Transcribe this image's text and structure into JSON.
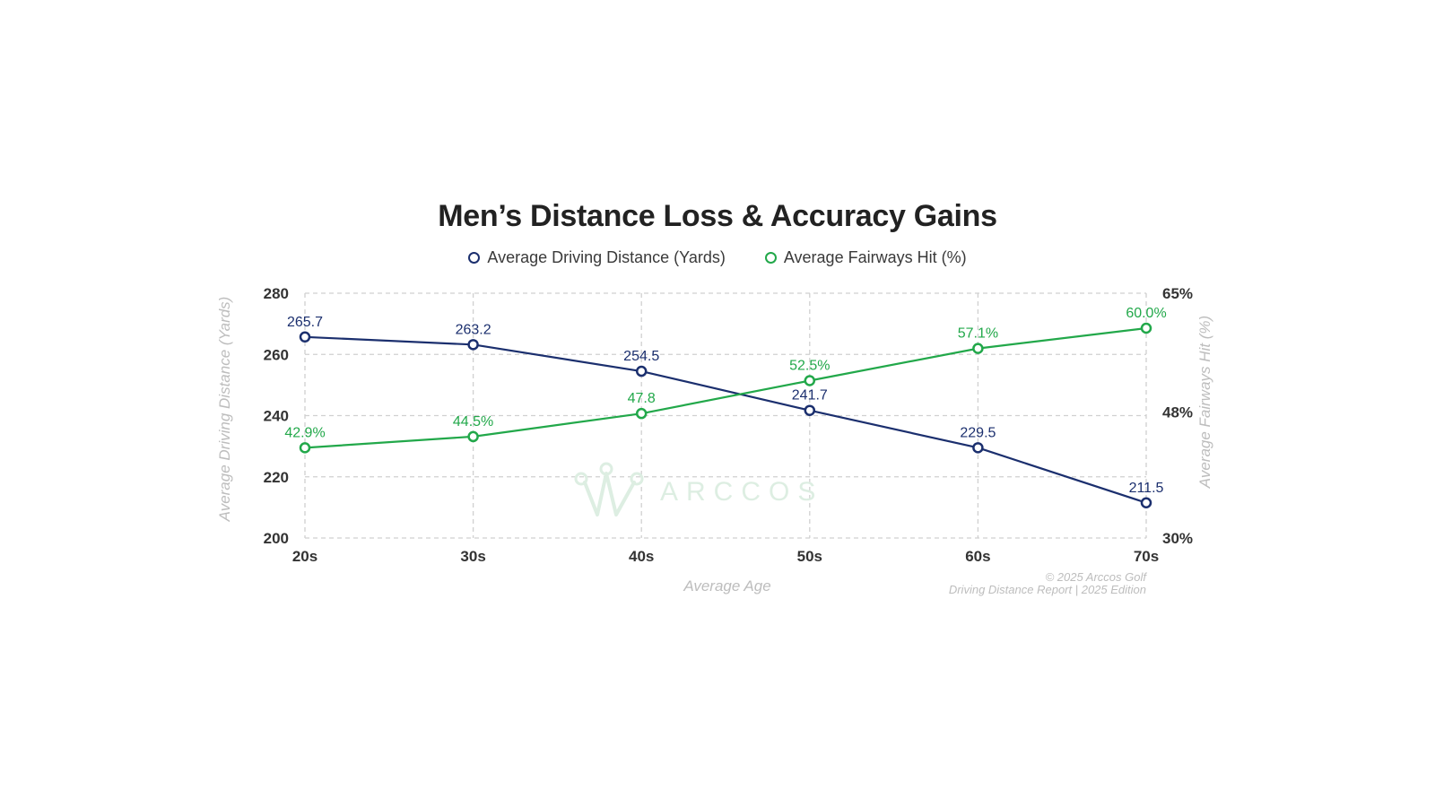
{
  "colors": {
    "distance": "#1b2f6e",
    "fairways": "#22a84a",
    "grid": "#d0d0d0",
    "watermark": "#ddeee2"
  },
  "chart_data": {
    "type": "line",
    "title": "Men’s Distance Loss & Accuracy Gains",
    "xlabel": "Average Age",
    "ylabel": "Average Driving Distance (Yards)",
    "y2label": "Average Fairways Hit (%)",
    "categories": [
      "20s",
      "30s",
      "40s",
      "50s",
      "60s",
      "70s"
    ],
    "ylim": [
      200,
      280
    ],
    "yticks": [
      "280",
      "260",
      "240",
      "220",
      "200"
    ],
    "yticks_values": [
      280,
      260,
      240,
      220,
      200
    ],
    "y2lim": [
      30,
      65
    ],
    "y2ticks": [
      "65%",
      "48%",
      "30%"
    ],
    "y2ticks_values": [
      65,
      48,
      30
    ],
    "grid": true,
    "legend_position": "top-center",
    "series": [
      {
        "name": "Average Driving Distance (Yards)",
        "axis": "left",
        "values": [
          265.7,
          263.2,
          254.5,
          241.7,
          229.5,
          211.5
        ],
        "labels": [
          "265.7",
          "263.2",
          "254.5",
          "241.7",
          "229.5",
          "211.5"
        ]
      },
      {
        "name": "Average Fairways Hit (%)",
        "axis": "right",
        "values": [
          42.9,
          44.5,
          47.8,
          52.5,
          57.1,
          60.0
        ],
        "labels": [
          "42.9%",
          "44.5%",
          "47.8",
          "52.5%",
          "57.1%",
          "60.0%"
        ]
      }
    ]
  },
  "watermark": {
    "text": "ARCCOS"
  },
  "footer": {
    "line1": "© 2025 Arccos Golf",
    "line2": "Driving Distance Report | 2025 Edition"
  }
}
